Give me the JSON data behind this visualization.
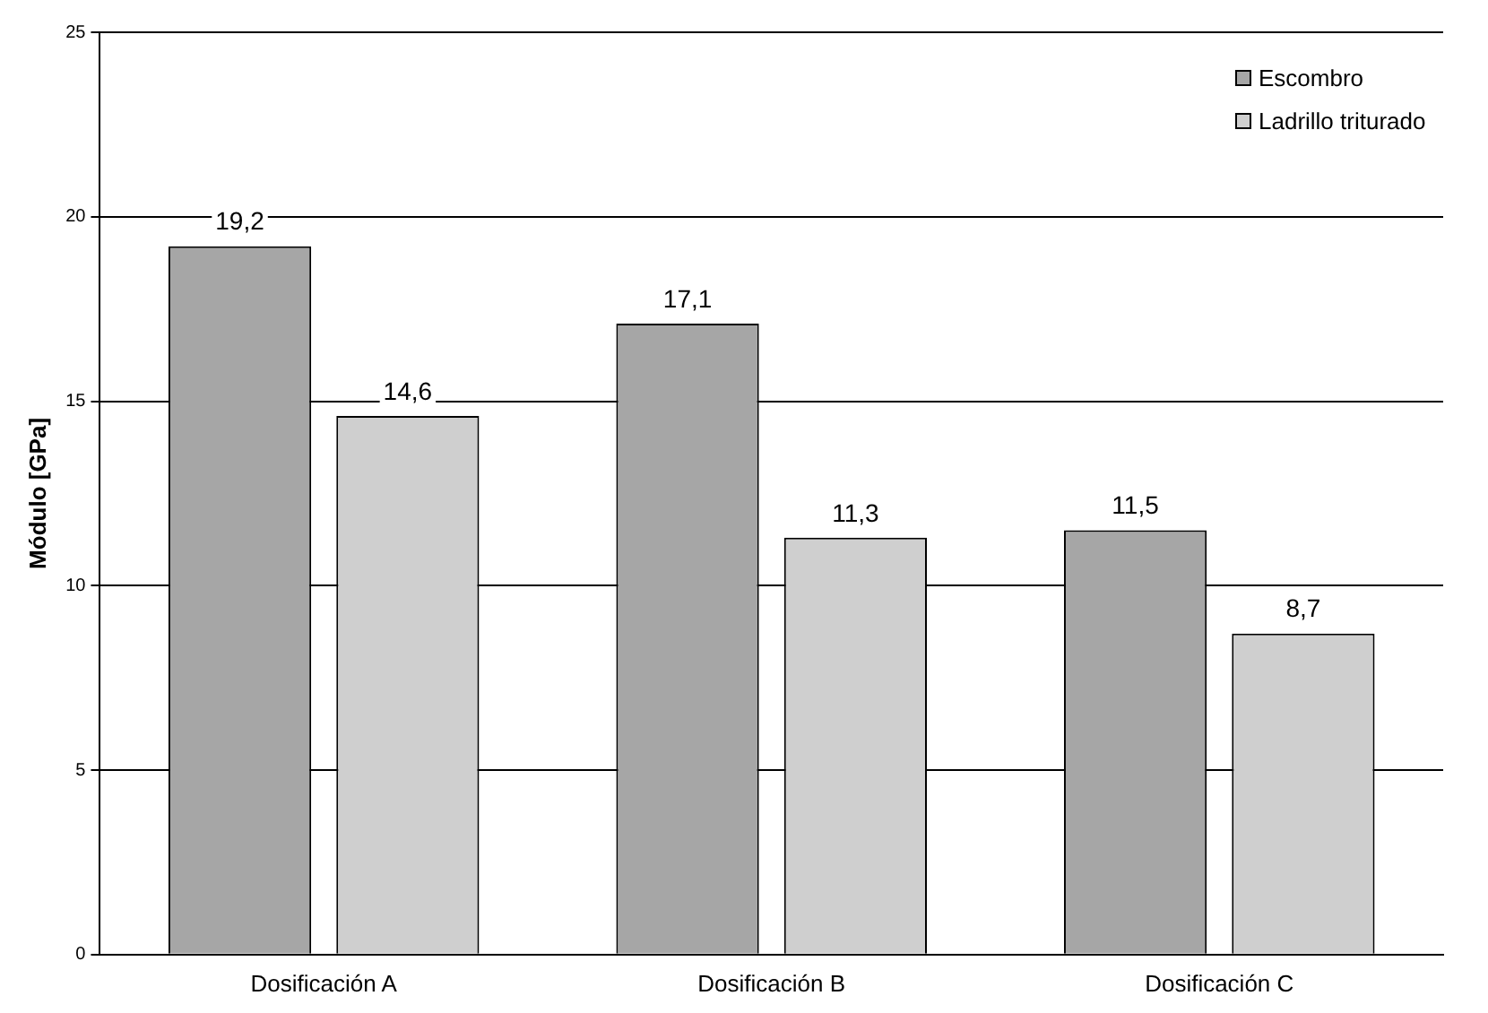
{
  "chart_data": {
    "type": "bar",
    "ylabel": "Módulo [GPa]",
    "categories": [
      "Dosificación A",
      "Dosificación B",
      "Dosificación C"
    ],
    "series": [
      {
        "name": "Escombro",
        "color": "#a6a6a6",
        "values": [
          19.2,
          17.1,
          11.5
        ],
        "value_labels": [
          "19,2",
          "17,1",
          "11,5"
        ]
      },
      {
        "name": "Ladrillo triturado",
        "color": "#cfcfcf",
        "values": [
          14.6,
          11.3,
          8.7
        ],
        "value_labels": [
          "14,6",
          "11,3",
          "8,7"
        ]
      }
    ],
    "ylim": [
      0,
      25
    ],
    "yticks": [
      0,
      5,
      10,
      15,
      20,
      25
    ],
    "grid": "y",
    "legend": "top right"
  }
}
